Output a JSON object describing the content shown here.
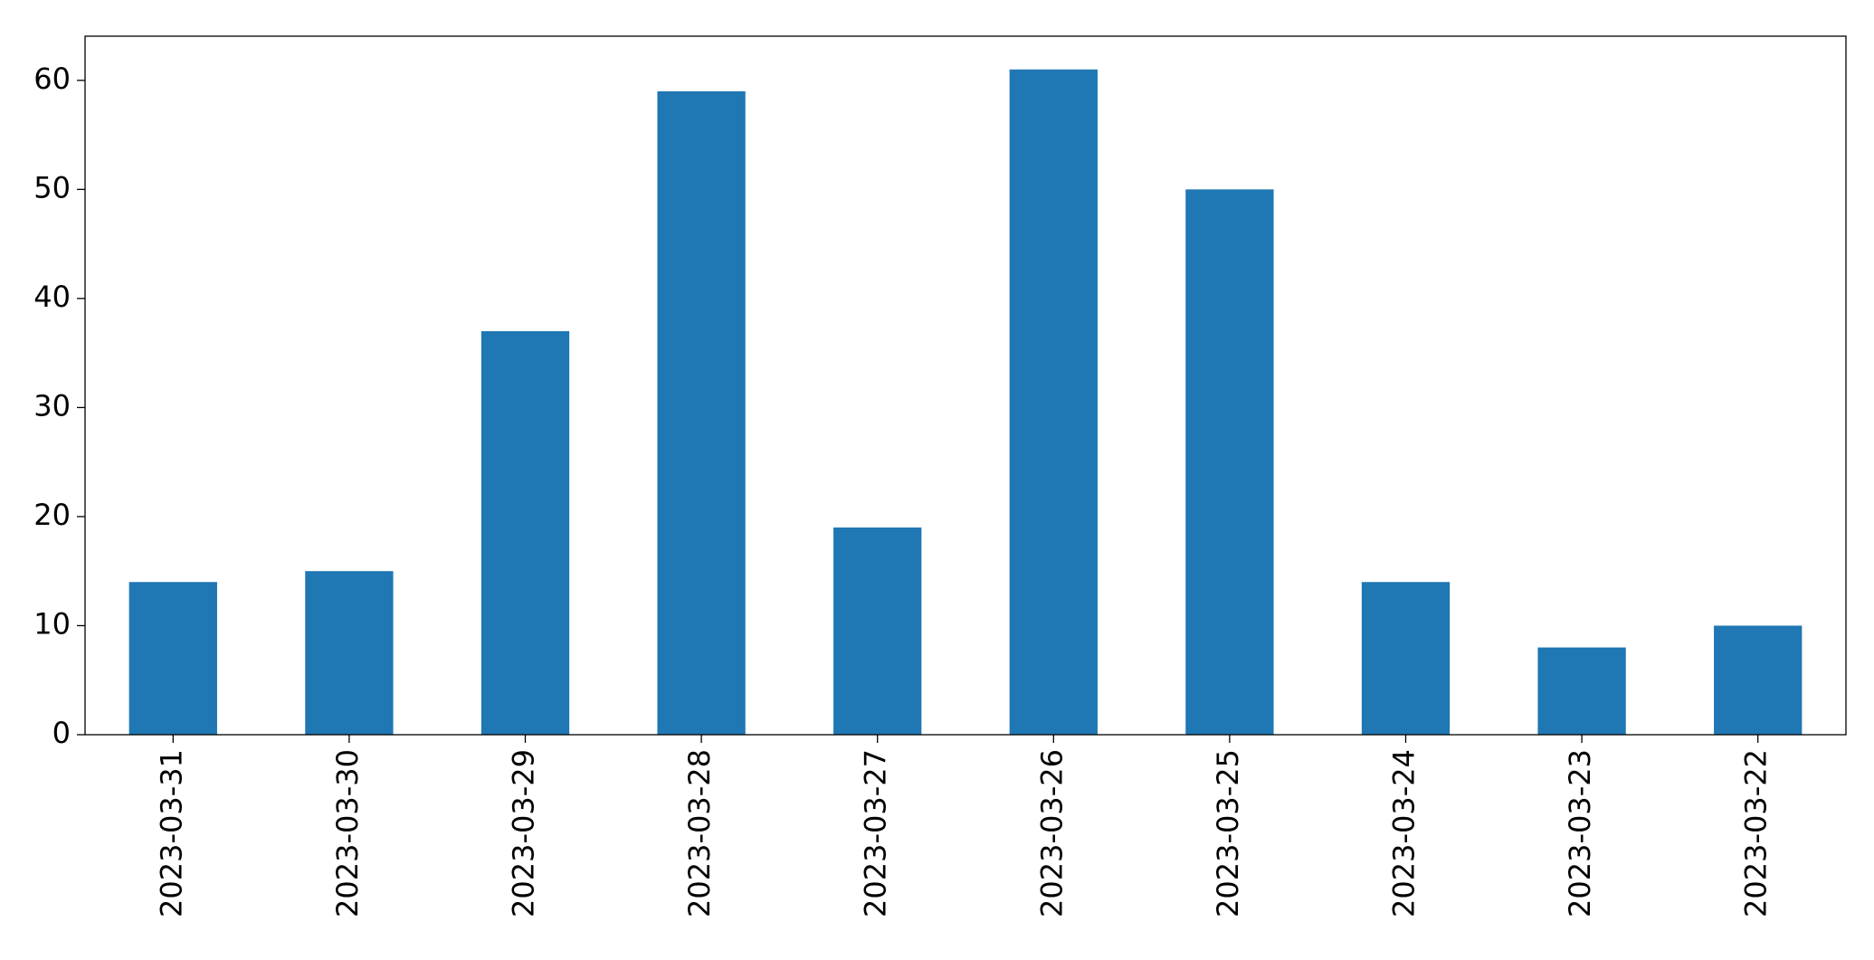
{
  "chart_data": {
    "type": "bar",
    "categories": [
      "2023-03-31",
      "2023-03-30",
      "2023-03-29",
      "2023-03-28",
      "2023-03-27",
      "2023-03-26",
      "2023-03-25",
      "2023-03-24",
      "2023-03-23",
      "2023-03-22"
    ],
    "values": [
      14,
      15,
      37,
      59,
      19,
      61,
      50,
      14,
      8,
      10
    ],
    "color": "#1f77b4",
    "ylim": [
      0,
      64.05
    ],
    "yticks": [
      0,
      10,
      20,
      30,
      40,
      50,
      60
    ],
    "grid": false
  }
}
